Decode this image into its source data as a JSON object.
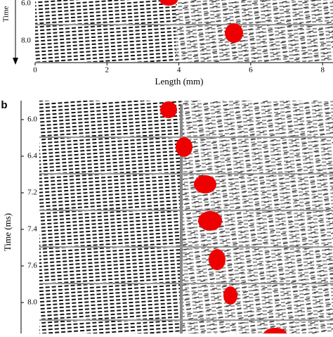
{
  "panel_a": {
    "y_label": "Time",
    "row_labels": [
      "6.0",
      "8.0"
    ],
    "x_ticks": [
      "0",
      "2",
      "4",
      "6",
      "8"
    ],
    "x_label": "Length (mm)"
  },
  "panel_b": {
    "letter": "b",
    "y_label": "Time (ms)",
    "row_labels": [
      "6.0",
      "6.4",
      "7.2",
      "7.4",
      "7.6",
      "8.0"
    ]
  }
}
